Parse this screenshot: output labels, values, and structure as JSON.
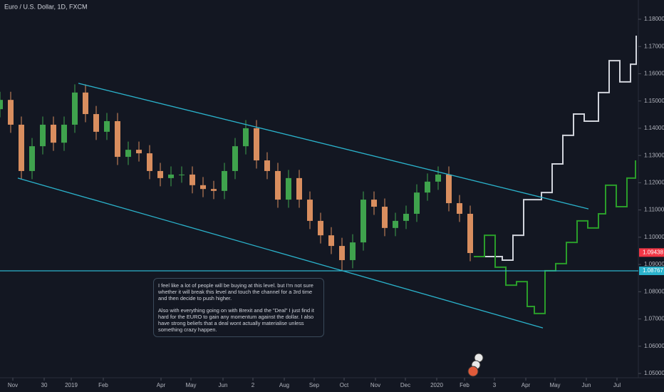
{
  "chart_data": {
    "type": "candlestick",
    "title": "Euro / U.S. Dollar, 1D, FXCM",
    "up_color": "#3fa34d",
    "down_color": "#d98e5f",
    "x": [
      0,
      7.5,
      15,
      22.5,
      30,
      37.5,
      45,
      52.5,
      60,
      67.5,
      75,
      82.5,
      90,
      97.5,
      105,
      112.5,
      120,
      127.5,
      135,
      142.5,
      150,
      157.5,
      165,
      172.5,
      180,
      187.5,
      195,
      202.5,
      210,
      217.5,
      225,
      232.5,
      240,
      247.5,
      255,
      262.5,
      270,
      277.5,
      285,
      292.5,
      300,
      307.5,
      315,
      322.5,
      330
    ],
    "open": [
      1.147,
      1.1504,
      1.1413,
      1.1243,
      1.1334,
      1.1413,
      1.1347,
      1.1413,
      1.1531,
      1.1452,
      1.1387,
      1.1426,
      1.1295,
      1.1321,
      1.1308,
      1.1243,
      1.1217,
      1.123,
      1.123,
      1.1191,
      1.1177,
      1.117,
      1.1243,
      1.1334,
      1.14,
      1.1282,
      1.1243,
      1.1138,
      1.1217,
      1.1138,
      1.106,
      1.1007,
      1.0968,
      1.0916,
      1.0981,
      1.1138,
      1.1112,
      1.1034,
      1.106,
      1.1086,
      1.1164,
      1.1204,
      1.123,
      1.1125,
      1.1086
    ],
    "high": [
      1.1534,
      1.1534,
      1.1443,
      1.1364,
      1.1443,
      1.1443,
      1.1443,
      1.1561,
      1.1561,
      1.1482,
      1.1456,
      1.1456,
      1.1351,
      1.1351,
      1.1338,
      1.1273,
      1.126,
      1.126,
      1.126,
      1.1221,
      1.1207,
      1.1273,
      1.1364,
      1.143,
      1.143,
      1.1312,
      1.1273,
      1.1247,
      1.1247,
      1.1168,
      1.109,
      1.1037,
      1.0998,
      1.1011,
      1.1168,
      1.1168,
      1.1142,
      1.109,
      1.1116,
      1.1194,
      1.1234,
      1.126,
      1.126,
      1.1155,
      1.1116
    ],
    "low": [
      1.144,
      1.1383,
      1.1213,
      1.1213,
      1.1304,
      1.1317,
      1.1317,
      1.1383,
      1.1422,
      1.1357,
      1.1357,
      1.1265,
      1.1265,
      1.1278,
      1.1213,
      1.1187,
      1.1187,
      1.12,
      1.1161,
      1.1147,
      1.114,
      1.114,
      1.1213,
      1.1304,
      1.1252,
      1.1213,
      1.1108,
      1.1108,
      1.1108,
      1.103,
      1.0977,
      1.0938,
      1.0877,
      1.0886,
      1.0951,
      1.1082,
      1.1004,
      1.1004,
      1.103,
      1.1056,
      1.1134,
      1.1174,
      1.1095,
      1.1056,
      1.0912
    ],
    "close": [
      1.1504,
      1.1413,
      1.1243,
      1.1334,
      1.1413,
      1.1347,
      1.1413,
      1.1531,
      1.1452,
      1.1387,
      1.1426,
      1.1295,
      1.1321,
      1.1308,
      1.1243,
      1.1217,
      1.123,
      1.123,
      1.1191,
      1.1177,
      1.117,
      1.1243,
      1.1334,
      1.14,
      1.1282,
      1.1243,
      1.1138,
      1.1217,
      1.1138,
      1.106,
      1.1007,
      1.0968,
      1.0916,
      1.0981,
      1.1138,
      1.1112,
      1.1034,
      1.106,
      1.1086,
      1.1164,
      1.1204,
      1.123,
      1.1125,
      1.1086,
      1.0942
    ],
    "projections": [
      {
        "color": "#d1d4dc",
        "x": [
          332.5,
          352.5,
          360,
          367.5,
          375,
          380,
          387.5,
          395,
          402.5,
          410,
          420,
          427.5,
          435,
          442.5,
          446.5
        ],
        "values": [
          1.0929,
          1.0916,
          1.1007,
          1.1138,
          1.1138,
          1.1164,
          1.1269,
          1.1374,
          1.1452,
          1.1426,
          1.1531,
          1.1648,
          1.157,
          1.1635,
          1.174
        ]
      },
      {
        "color": "#2a9d2a",
        "x": [
          332.5,
          340,
          347.5,
          355,
          362.5,
          370,
          375,
          382.5,
          390,
          397.5,
          405,
          412.5,
          420,
          425,
          432.5,
          440,
          446
        ],
        "values": [
          1.0929,
          1.1007,
          1.089,
          1.0824,
          1.0837,
          1.0746,
          1.072,
          1.0877,
          1.0903,
          1.0981,
          1.106,
          1.1034,
          1.1086,
          1.1191,
          1.1112,
          1.1217,
          1.1282
        ]
      }
    ],
    "trendlines": [
      {
        "color": "#2bb3cc",
        "x": [
          55,
          413
        ],
        "y": [
          1.1565,
          1.1104
        ]
      },
      {
        "color": "#2bb3cc",
        "x": [
          12.5,
          381
        ],
        "y": [
          1.1217,
          1.0667
        ]
      }
    ],
    "price_labels": [
      {
        "value": 1.09438,
        "color": "#f23645",
        "line": false
      },
      {
        "value": 1.08767,
        "color": "#2bb3cc",
        "line": true
      }
    ],
    "xlim": [
      0,
      447.5
    ],
    "ylim": [
      1.05,
      1.18
    ],
    "xticks": [
      {
        "value": 9,
        "label": "Nov"
      },
      {
        "value": 31,
        "label": "30"
      },
      {
        "value": 50,
        "label": "2019"
      },
      {
        "value": 72.5,
        "label": "Feb"
      },
      {
        "value": 113,
        "label": "Apr"
      },
      {
        "value": 134,
        "label": "May"
      },
      {
        "value": 156.5,
        "label": "Jun"
      },
      {
        "value": 177.5,
        "label": "2"
      },
      {
        "value": 199.5,
        "label": "Aug"
      },
      {
        "value": 220.5,
        "label": "Sep"
      },
      {
        "value": 241.5,
        "label": "Oct"
      },
      {
        "value": 263.5,
        "label": "Nov"
      },
      {
        "value": 284.5,
        "label": "Dec"
      },
      {
        "value": 306.5,
        "label": "2020"
      },
      {
        "value": 326,
        "label": "Feb"
      },
      {
        "value": 347,
        "label": "3"
      },
      {
        "value": 369,
        "label": "Apr"
      },
      {
        "value": 389.5,
        "label": "May"
      },
      {
        "value": 411.5,
        "label": "Jun"
      },
      {
        "value": 433,
        "label": "Jul"
      }
    ],
    "yticks": [
      {
        "value": 1.05,
        "label": "1.05000"
      },
      {
        "value": 1.06,
        "label": "1.06000"
      },
      {
        "value": 1.07,
        "label": "1.07000"
      },
      {
        "value": 1.08,
        "label": "1.08000"
      },
      {
        "value": 1.09,
        "label": "1.09000"
      },
      {
        "value": 1.1,
        "label": "1.10000"
      },
      {
        "value": 1.11,
        "label": "1.11000"
      },
      {
        "value": 1.12,
        "label": "1.12000"
      },
      {
        "value": 1.13,
        "label": "1.13000"
      },
      {
        "value": 1.14,
        "label": "1.14000"
      },
      {
        "value": 1.15,
        "label": "1.15000"
      },
      {
        "value": 1.16,
        "label": "1.16000"
      },
      {
        "value": 1.17,
        "label": "1.17000"
      },
      {
        "value": 1.18,
        "label": "1.18000"
      }
    ],
    "annotation": {
      "paragraphs": [
        "I feel like a lot of people will be buying at this level. but I'm not sure whether it will break this level and touch the channel for a 3rd time and then decide to push higher.",
        "Also with everything going on with Brexit and the \"Deal\" I just find it hard for the EURO to gain any momentum against the dollar. I also have strong beliefs that a deal wont actually materialise unless something crazy happen."
      ]
    }
  }
}
